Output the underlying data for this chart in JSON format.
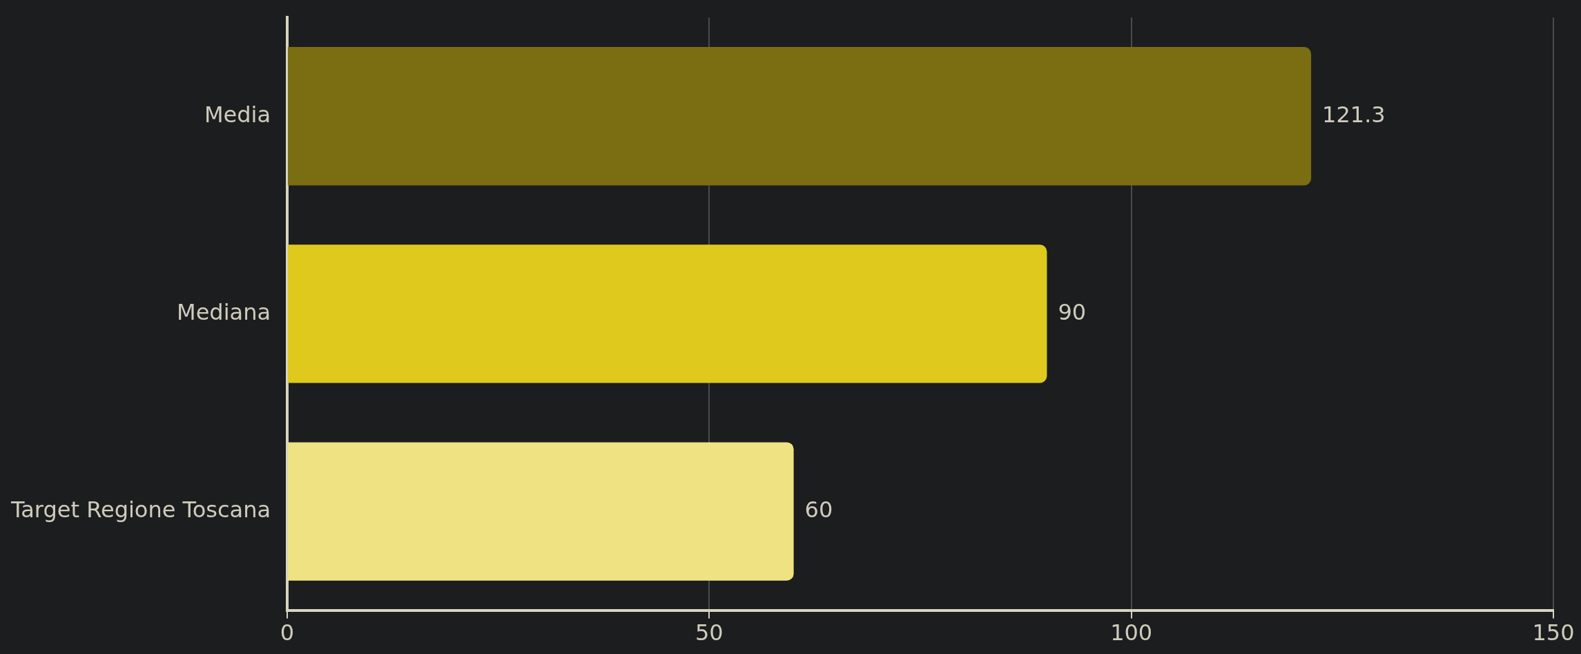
{
  "chart_data": {
    "type": "bar",
    "orientation": "horizontal",
    "categories": [
      "Media",
      "Mediana",
      "Target Regione Toscana"
    ],
    "values": [
      121.3,
      90,
      60
    ],
    "colors": [
      "#7a6d12",
      "#dfc91c",
      "#efe283"
    ],
    "xlim": [
      0,
      150
    ],
    "xticks": [
      0,
      50,
      100,
      150
    ],
    "grid": "x",
    "data_labels": true
  }
}
